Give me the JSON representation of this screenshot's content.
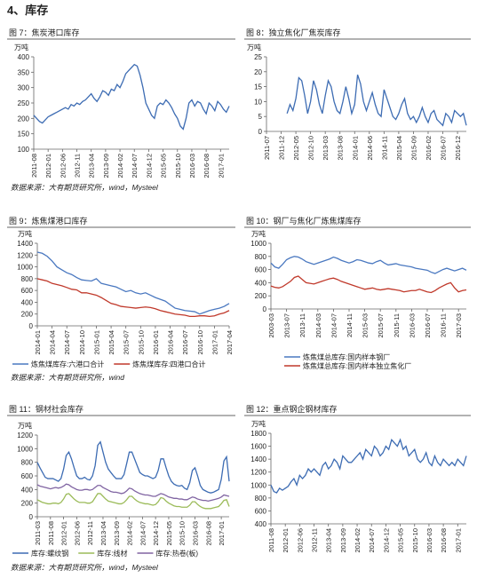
{
  "heading": "4、库存",
  "sources": [
    "数据来源：大有期货研究所，wind，Mysteel",
    "数据来源：大有期货研究所，wind",
    "数据来源：大有期货研究所，wind，Mysteel"
  ],
  "chart_data": [
    {
      "type": "line",
      "title": "图 7：焦炭港口库存",
      "y_label": "万吨",
      "grid": false,
      "ylim": [
        100,
        400
      ],
      "yticks": [
        100,
        150,
        200,
        250,
        300,
        350,
        400
      ],
      "categories": [
        "2011-08",
        null,
        null,
        null,
        null,
        "2012-01",
        null,
        null,
        null,
        null,
        "2012-06",
        null,
        null,
        null,
        null,
        "2012-11",
        null,
        null,
        null,
        null,
        "2013-04",
        null,
        null,
        null,
        null,
        "2013-09",
        null,
        null,
        null,
        null,
        "2014-02",
        null,
        null,
        null,
        null,
        "2014-07",
        null,
        null,
        null,
        null,
        "2014-12",
        null,
        null,
        null,
        null,
        "2015-05",
        null,
        null,
        null,
        null,
        "2015-10",
        null,
        null,
        null,
        null,
        "2016-03",
        null,
        null,
        null,
        null,
        "2016-08",
        null,
        null,
        null,
        null,
        "2017-01",
        null,
        null,
        null
      ],
      "series": [
        {
          "color": "#3d6cb3",
          "values": [
            210,
            200,
            190,
            185,
            195,
            205,
            210,
            215,
            220,
            225,
            230,
            235,
            230,
            245,
            240,
            250,
            245,
            255,
            260,
            270,
            280,
            265,
            255,
            270,
            290,
            285,
            275,
            295,
            290,
            310,
            300,
            320,
            345,
            355,
            365,
            375,
            370,
            340,
            300,
            250,
            230,
            210,
            200,
            240,
            250,
            245,
            260,
            250,
            235,
            215,
            200,
            175,
            165,
            200,
            250,
            260,
            240,
            255,
            250,
            230,
            215,
            250,
            240,
            225,
            255,
            245,
            230,
            220,
            240
          ]
        }
      ]
    },
    {
      "type": "line",
      "title": "图 8：独立焦化厂焦炭库存",
      "y_label": "万吨",
      "grid": false,
      "ylim": [
        0,
        25
      ],
      "yticks": [
        0,
        5,
        10,
        15,
        20,
        25
      ],
      "categories": [
        "2011-07",
        null,
        null,
        null,
        null,
        "2011-12",
        null,
        null,
        null,
        null,
        "2012-05",
        null,
        null,
        null,
        null,
        "2012-10",
        null,
        null,
        null,
        null,
        "2013-03",
        null,
        null,
        null,
        null,
        "2013-08",
        null,
        null,
        null,
        null,
        "2014-01",
        null,
        null,
        null,
        null,
        "2014-06",
        null,
        null,
        null,
        null,
        "2014-11",
        null,
        null,
        null,
        null,
        "2015-04",
        null,
        null,
        null,
        null,
        "2015-09",
        null,
        null,
        null,
        null,
        "2016-02",
        null,
        null,
        null,
        null,
        "2016-07",
        null,
        null,
        null,
        null,
        "2016-12",
        null,
        null,
        null
      ],
      "series": [
        {
          "color": "#3d6cb3",
          "values": [
            null,
            null,
            null,
            null,
            null,
            null,
            null,
            6,
            9,
            7,
            11,
            18,
            17,
            12,
            6,
            10,
            17,
            14,
            9,
            6,
            12,
            17,
            15,
            10,
            7,
            6,
            10,
            15,
            11,
            6,
            9,
            19,
            16,
            10,
            7,
            10,
            13,
            9,
            6,
            5,
            14,
            11,
            8,
            5,
            4,
            6,
            9,
            11,
            6,
            4,
            5,
            3,
            5,
            8,
            5,
            3,
            6,
            7,
            4,
            3,
            2,
            6,
            5,
            3,
            7,
            6,
            5,
            6,
            2
          ]
        }
      ]
    },
    {
      "type": "line",
      "title": "图 9：炼焦煤港口库存",
      "y_label": "万吨",
      "grid": false,
      "legend": "bottom",
      "ylim": [
        0,
        1400
      ],
      "yticks": [
        0,
        200,
        400,
        600,
        800,
        1000,
        1200,
        1400
      ],
      "categories": [
        "2014-01",
        null,
        null,
        "2014-04",
        null,
        null,
        "2014-07",
        null,
        null,
        "2014-10",
        null,
        null,
        "2015-01",
        null,
        null,
        "2015-04",
        null,
        null,
        "2015-07",
        null,
        null,
        "2015-10",
        null,
        null,
        "2016-01",
        null,
        null,
        "2016-04",
        null,
        null,
        "2016-07",
        null,
        null,
        "2016-10",
        null,
        null,
        "2017-01",
        null,
        null,
        "2017-04"
      ],
      "series": [
        {
          "name": "炼焦煤库存:六港口合计",
          "color": "#4a78c0",
          "values": [
            1250,
            1230,
            1180,
            1100,
            1000,
            950,
            900,
            870,
            820,
            780,
            770,
            760,
            800,
            720,
            700,
            680,
            660,
            620,
            580,
            600,
            560,
            540,
            560,
            520,
            480,
            450,
            420,
            360,
            300,
            280,
            260,
            250,
            240,
            200,
            230,
            260,
            280,
            300,
            330,
            380
          ]
        },
        {
          "name": "炼焦煤库存:四港口合计",
          "color": "#c0392b",
          "values": [
            800,
            780,
            760,
            720,
            700,
            680,
            650,
            620,
            610,
            560,
            560,
            540,
            520,
            480,
            430,
            380,
            360,
            330,
            320,
            310,
            300,
            310,
            320,
            310,
            290,
            260,
            240,
            220,
            200,
            190,
            180,
            160,
            160,
            170,
            170,
            160,
            170,
            200,
            220,
            260
          ]
        }
      ]
    },
    {
      "type": "line",
      "title": "图 10：钢厂与焦化厂炼焦煤库存",
      "y_label": "万吨",
      "grid": false,
      "legend": "bottom",
      "ylim": [
        0,
        1000
      ],
      "yticks": [
        0,
        200,
        400,
        600,
        800,
        1000
      ],
      "categories": [
        "2003-03",
        null,
        null,
        null,
        "2013-07",
        null,
        null,
        null,
        "2013-11",
        null,
        null,
        null,
        "2014-03",
        null,
        null,
        null,
        "2014-07",
        null,
        null,
        null,
        "2014-11",
        null,
        null,
        null,
        "2015-03",
        null,
        null,
        null,
        "2015-07",
        null,
        null,
        null,
        "2015-11",
        null,
        null,
        null,
        "2016-03",
        null,
        null,
        null,
        "2016-07",
        null,
        null,
        null,
        "2016-11",
        null,
        null,
        null,
        "2017-03",
        null,
        null
      ],
      "series": [
        {
          "name": "炼焦煤总库存:国内样本钢厂",
          "color": "#4a78c0",
          "values": [
            700,
            640,
            620,
            680,
            750,
            780,
            800,
            790,
            760,
            720,
            700,
            680,
            700,
            720,
            740,
            760,
            790,
            770,
            740,
            720,
            700,
            720,
            750,
            740,
            720,
            700,
            690,
            720,
            740,
            700,
            670,
            680,
            690,
            670,
            660,
            650,
            640,
            620,
            610,
            600,
            590,
            560,
            540,
            570,
            600,
            620,
            600,
            580,
            600,
            620,
            590
          ]
        },
        {
          "name": "炼焦煤总库存:国内样本独立焦化厂",
          "color": "#c0392b",
          "values": [
            350,
            330,
            320,
            340,
            380,
            420,
            480,
            500,
            450,
            400,
            390,
            380,
            400,
            420,
            440,
            460,
            470,
            450,
            420,
            400,
            380,
            360,
            340,
            320,
            300,
            310,
            320,
            300,
            290,
            300,
            310,
            300,
            290,
            280,
            260,
            270,
            280,
            280,
            300,
            280,
            260,
            250,
            280,
            320,
            350,
            380,
            400,
            320,
            260,
            280,
            290
          ]
        }
      ]
    },
    {
      "type": "line",
      "title": "图 11：钢材社会库存",
      "y_label": "万吨",
      "grid": false,
      "legend": "bottom",
      "ylim": [
        0,
        1200
      ],
      "yticks": [
        0,
        200,
        400,
        600,
        800,
        1000,
        1200
      ],
      "categories": [
        "2011-03",
        null,
        null,
        null,
        null,
        "2011-08",
        null,
        null,
        null,
        null,
        "2012-01",
        null,
        null,
        null,
        null,
        "2012-06",
        null,
        null,
        null,
        null,
        "2012-11",
        null,
        null,
        null,
        null,
        "2013-04",
        null,
        null,
        null,
        null,
        "2013-09",
        null,
        null,
        null,
        null,
        "2014-02",
        null,
        null,
        null,
        null,
        "2014-07",
        null,
        null,
        null,
        null,
        "2014-12",
        null,
        null,
        null,
        null,
        "2015-05",
        null,
        null,
        null,
        null,
        "2015-10",
        null,
        null,
        null,
        null,
        "2016-03",
        null,
        null,
        null,
        null,
        "2016-08",
        null,
        null,
        null,
        null,
        "2017-01",
        null,
        null,
        null
      ],
      "series": [
        {
          "name": "库存:螺纹钢",
          "color": "#3d6cb3",
          "values": [
            800,
            720,
            650,
            580,
            560,
            560,
            560,
            540,
            520,
            560,
            700,
            900,
            950,
            850,
            720,
            600,
            560,
            560,
            580,
            550,
            540,
            600,
            750,
            1050,
            1100,
            950,
            800,
            700,
            650,
            600,
            560,
            560,
            560,
            620,
            780,
            950,
            950,
            850,
            750,
            650,
            620,
            600,
            600,
            580,
            560,
            580,
            680,
            850,
            850,
            720,
            600,
            520,
            480,
            460,
            450,
            460,
            420,
            400,
            500,
            680,
            720,
            600,
            460,
            400,
            380,
            360,
            350,
            360,
            380,
            400,
            550,
            820,
            880,
            520
          ]
        },
        {
          "name": "库存:线材",
          "color": "#9bbb59",
          "values": [
            250,
            230,
            210,
            200,
            190,
            190,
            200,
            200,
            190,
            210,
            260,
            330,
            340,
            300,
            260,
            230,
            210,
            210,
            210,
            200,
            200,
            220,
            280,
            340,
            340,
            300,
            260,
            230,
            220,
            210,
            200,
            190,
            190,
            210,
            250,
            300,
            300,
            260,
            230,
            210,
            200,
            190,
            190,
            180,
            170,
            180,
            220,
            280,
            270,
            230,
            200,
            180,
            160,
            150,
            150,
            140,
            140,
            140,
            170,
            220,
            220,
            180,
            150,
            130,
            120,
            120,
            120,
            130,
            140,
            150,
            190,
            240,
            250,
            150
          ]
        },
        {
          "name": "库存:热卷(板)",
          "color": "#8064a2",
          "values": [
            470,
            450,
            440,
            430,
            420,
            410,
            420,
            430,
            420,
            430,
            450,
            480,
            470,
            440,
            420,
            400,
            390,
            390,
            400,
            400,
            390,
            400,
            430,
            460,
            460,
            430,
            410,
            390,
            370,
            360,
            360,
            350,
            340,
            350,
            380,
            420,
            410,
            380,
            360,
            340,
            330,
            320,
            320,
            310,
            300,
            300,
            320,
            340,
            330,
            310,
            290,
            280,
            270,
            270,
            260,
            260,
            250,
            250,
            270,
            290,
            280,
            260,
            250,
            240,
            240,
            230,
            240,
            250,
            260,
            270,
            290,
            320,
            310,
            300
          ]
        }
      ]
    },
    {
      "type": "line",
      "title": "图 12：重点钢企钢材库存",
      "y_label": "万吨",
      "grid": false,
      "ylim": [
        400,
        1800
      ],
      "yticks": [
        400,
        600,
        800,
        1000,
        1200,
        1400,
        1600,
        1800
      ],
      "categories": [
        "2011-08",
        null,
        null,
        null,
        null,
        "2012-01",
        null,
        null,
        null,
        null,
        "2012-06",
        null,
        null,
        null,
        null,
        "2012-11",
        null,
        null,
        null,
        null,
        "2013-04",
        null,
        null,
        null,
        null,
        "2013-09",
        null,
        null,
        null,
        null,
        "2014-02",
        null,
        null,
        null,
        null,
        "2014-07",
        null,
        null,
        null,
        null,
        "2014-12",
        null,
        null,
        null,
        null,
        "2015-05",
        null,
        null,
        null,
        null,
        "2015-10",
        null,
        null,
        null,
        null,
        "2016-03",
        null,
        null,
        null,
        null,
        "2016-08",
        null,
        null,
        null,
        null,
        "2017-01",
        null,
        null,
        null
      ],
      "series": [
        {
          "color": "#3d6cb3",
          "values": [
            1000,
            900,
            880,
            950,
            920,
            950,
            980,
            1050,
            1100,
            1000,
            1150,
            1100,
            1150,
            1250,
            1200,
            1250,
            1200,
            1150,
            1300,
            1350,
            1250,
            1300,
            1400,
            1350,
            1250,
            1450,
            1400,
            1350,
            1350,
            1400,
            1450,
            1500,
            1400,
            1550,
            1500,
            1450,
            1600,
            1550,
            1450,
            1500,
            1600,
            1550,
            1700,
            1650,
            1600,
            1700,
            1550,
            1600,
            1450,
            1500,
            1550,
            1400,
            1350,
            1400,
            1500,
            1350,
            1300,
            1450,
            1350,
            1300,
            1400,
            1350,
            1300,
            1350,
            1300,
            1400,
            1350,
            1300,
            1450
          ]
        }
      ]
    }
  ]
}
